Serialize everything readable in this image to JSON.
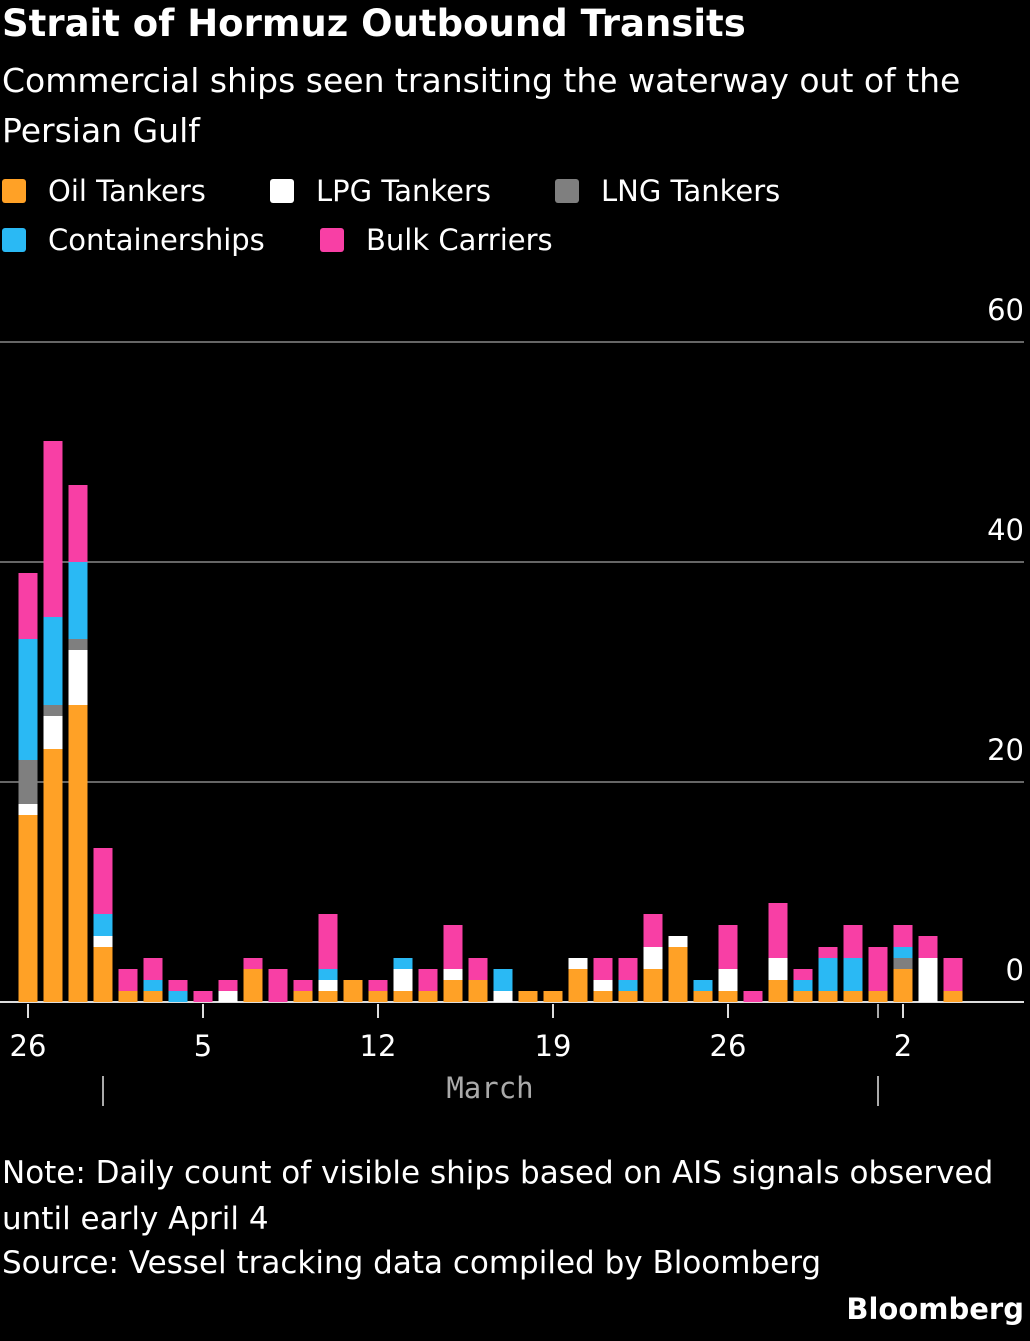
{
  "chart_data": {
    "type": "stacked-bar",
    "title": "Strait of Hormuz Outbound Transits",
    "subtitle": "Commercial ships seen transiting the waterway out of the Persian Gulf",
    "categories": [
      "26",
      null,
      null,
      null,
      null,
      null,
      null,
      "5",
      null,
      null,
      null,
      null,
      null,
      null,
      "12",
      null,
      null,
      null,
      null,
      null,
      null,
      "19",
      null,
      null,
      null,
      null,
      null,
      null,
      "26",
      null,
      null,
      null,
      null,
      null,
      null,
      "2",
      null,
      null
    ],
    "month_label": "March",
    "series": [
      {
        "name": "Oil Tankers",
        "color": "#ffa126",
        "values": [
          17,
          23,
          27,
          5,
          1,
          1,
          0,
          0,
          0,
          3,
          0,
          1,
          1,
          2,
          1,
          1,
          1,
          2,
          2,
          0,
          1,
          1,
          3,
          1,
          1,
          3,
          5,
          1,
          1,
          0,
          2,
          1,
          1,
          1,
          1,
          3,
          0,
          1
        ]
      },
      {
        "name": "LPG Tankers",
        "color": "#ffffff",
        "values": [
          1,
          3,
          5,
          1,
          0,
          0,
          0,
          0,
          1,
          0,
          0,
          0,
          1,
          0,
          0,
          2,
          0,
          1,
          0,
          1,
          0,
          0,
          1,
          1,
          0,
          2,
          1,
          0,
          2,
          0,
          2,
          0,
          0,
          0,
          0,
          0,
          4,
          0
        ]
      },
      {
        "name": "LNG Tankers",
        "color": "#7f7f7f",
        "values": [
          4,
          1,
          1,
          0,
          0,
          0,
          0,
          0,
          0,
          0,
          0,
          0,
          0,
          0,
          0,
          0,
          0,
          0,
          0,
          0,
          0,
          0,
          0,
          0,
          0,
          0,
          0,
          0,
          0,
          0,
          0,
          0,
          0,
          0,
          0,
          1,
          0,
          0
        ]
      },
      {
        "name": "Containerships",
        "color": "#2ab9f4",
        "values": [
          11,
          8,
          7,
          2,
          0,
          1,
          1,
          0,
          0,
          0,
          0,
          0,
          1,
          0,
          0,
          1,
          0,
          0,
          0,
          2,
          0,
          0,
          0,
          0,
          1,
          0,
          0,
          1,
          0,
          0,
          0,
          1,
          3,
          3,
          0,
          1,
          0,
          0
        ]
      },
      {
        "name": "Bulk Carriers",
        "color": "#f83fa5",
        "values": [
          6,
          16,
          7,
          6,
          2,
          2,
          1,
          1,
          1,
          1,
          3,
          1,
          5,
          0,
          1,
          0,
          2,
          4,
          2,
          0,
          0,
          0,
          0,
          2,
          2,
          3,
          0,
          0,
          4,
          1,
          5,
          1,
          1,
          3,
          4,
          2,
          2,
          3
        ]
      }
    ],
    "ylim": [
      0,
      60
    ],
    "yticks": [
      0,
      20,
      40,
      60
    ],
    "grid": true,
    "note": "Note: Daily count of visible ships based on AIS signals observed until early April 4",
    "source": "Source: Vessel tracking data compiled by Bloomberg",
    "brand": "Bloomberg"
  }
}
